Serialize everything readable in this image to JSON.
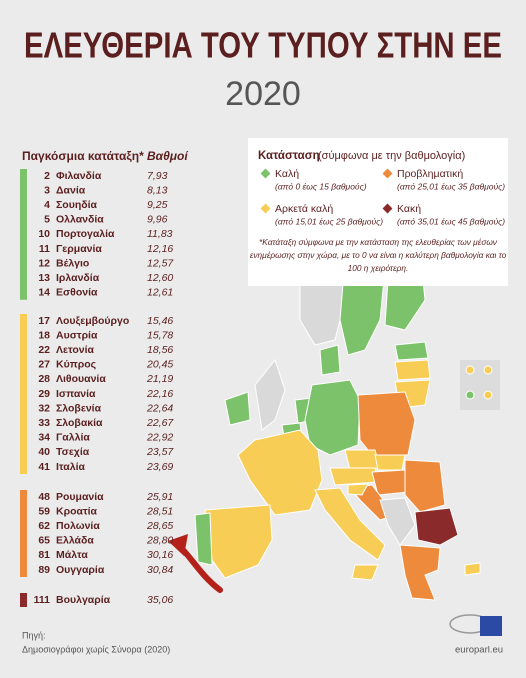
{
  "header": {
    "title": "ΕΛΕΥΘΕΡΙΑ ΤΟΥ ΤΥΠΟΥ ΣΤΗΝ ΕΕ",
    "year": "2020"
  },
  "table": {
    "rank_header": "Παγκόσμια κατάταξη*",
    "score_header": "Βαθμοί",
    "groups": [
      {
        "color": "#7cc26a",
        "rows": [
          [
            2,
            "Φιλανδία",
            "7,93"
          ],
          [
            3,
            "Δανία",
            "8,13"
          ],
          [
            4,
            "Σουηδία",
            "9,25"
          ],
          [
            5,
            "Ολλανδία",
            "9,96"
          ],
          [
            10,
            "Πορτογαλία",
            "11,83"
          ],
          [
            11,
            "Γερμανία",
            "12,16"
          ],
          [
            12,
            "Βέλγιο",
            "12,57"
          ],
          [
            13,
            "Ιρλανδία",
            "12,60"
          ],
          [
            14,
            "Εσθονία",
            "12,61"
          ]
        ]
      },
      {
        "color": "#f8cd55",
        "rows": [
          [
            17,
            "Λουξεμβούργο",
            "15,46"
          ],
          [
            18,
            "Αυστρία",
            "15,78"
          ],
          [
            22,
            "Λετονία",
            "18,56"
          ],
          [
            27,
            "Κύπρος",
            "20,45"
          ],
          [
            28,
            "Λιθουανία",
            "21,19"
          ],
          [
            29,
            "Ισπανία",
            "22,16"
          ],
          [
            32,
            "Σλοβενία",
            "22,64"
          ],
          [
            33,
            "Σλοβακία",
            "22,67"
          ],
          [
            34,
            "Γαλλία",
            "22,92"
          ],
          [
            40,
            "Τσεχία",
            "23,57"
          ],
          [
            41,
            "Ιταλία",
            "23,69"
          ]
        ]
      },
      {
        "color": "#ee8a3c",
        "rows": [
          [
            48,
            "Ρουμανία",
            "25,91"
          ],
          [
            59,
            "Κροατία",
            "28,51"
          ],
          [
            62,
            "Πολωνία",
            "28,65"
          ],
          [
            65,
            "Ελλάδα",
            "28,80"
          ],
          [
            81,
            "Μάλτα",
            "30,16"
          ],
          [
            89,
            "Ουγγαρία",
            "30,84"
          ]
        ]
      },
      {
        "color": "#8a2a2a",
        "rows": [
          [
            111,
            "Βουλγαρία",
            "35,06"
          ]
        ]
      }
    ]
  },
  "legend": {
    "title": "Κατάσταση",
    "subtitle": "(σύμφωνα με την βαθμολογία)",
    "items": [
      {
        "label": "Καλή",
        "range": "(από 0 έως 15 βαθμούς)",
        "color": "#7cc26a"
      },
      {
        "label": "Προβληματική",
        "range": "(από 25,01 έως 35 βαθμούς)",
        "color": "#ee8a3c"
      },
      {
        "label": "Αρκετά καλή",
        "range": "(από 15,01 έως 25 βαθμούς)",
        "color": "#f8cd55"
      },
      {
        "label": "Κακή",
        "range": "(από 35,01 έως 45 βαθμούς)",
        "color": "#8a2a2a"
      }
    ],
    "note": [
      "*Κατάταξη σύμφωνα με την κατάσταση της ελευθερίας των μέσων",
      "ενημέρωσης στην χώρα, με το 0 να είναι η καλύτερη βαθμολογία και το",
      "100 η χειρότερη."
    ]
  },
  "source": {
    "label": "Πηγή:",
    "text": "Δημοσιογράφοι χωρίς Σύνορα (2020)"
  },
  "site": "europarl.eu"
}
